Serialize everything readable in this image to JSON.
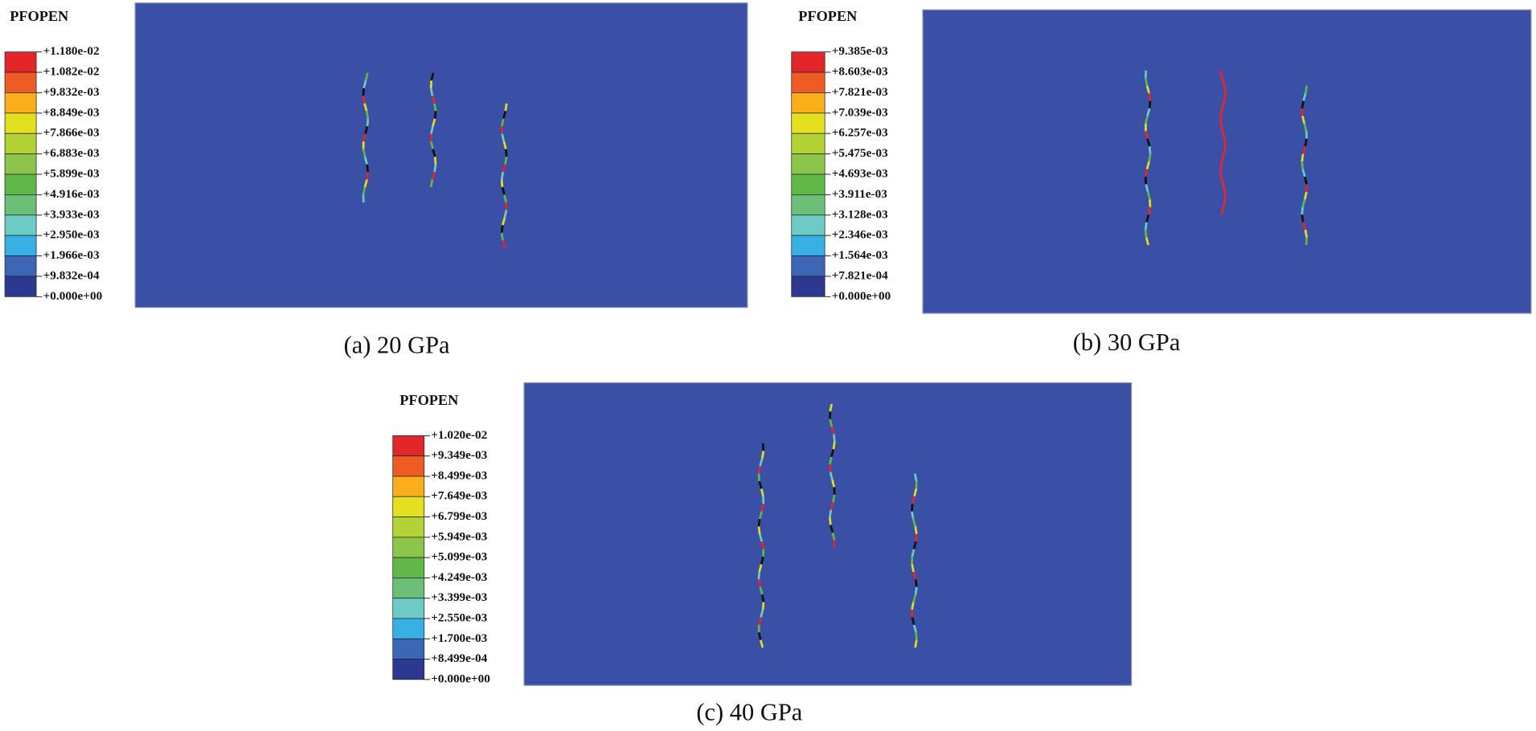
{
  "band_colors": [
    "#e3262a",
    "#ee5b24",
    "#f9ae1a",
    "#e3e01f",
    "#b2d235",
    "#8cc54a",
    "#5fb847",
    "#6bbf78",
    "#6dcbc6",
    "#38b0e3",
    "#3d66b5",
    "#2b3990"
  ],
  "plot_color": "#3a4fa6",
  "panels": [
    {
      "legend_title": "PFOPEN",
      "caption": "(a) 20 GPa",
      "legend_labels": [
        "+1.180e-02",
        "+1.082e-02",
        "+9.832e-03",
        "+8.849e-03",
        "+7.866e-03",
        "+6.883e-03",
        "+5.899e-03",
        "+4.916e-03",
        "+3.933e-03",
        "+2.950e-03",
        "+1.966e-03",
        "+9.832e-04",
        "+0.000e+00"
      ]
    },
    {
      "legend_title": "PFOPEN",
      "caption": "(b) 30 GPa",
      "legend_labels": [
        "+9.385e-03",
        "+8.603e-03",
        "+7.821e-03",
        "+7.039e-03",
        "+6.257e-03",
        "+5.475e-03",
        "+4.693e-03",
        "+3.911e-03",
        "+3.128e-03",
        "+2.346e-03",
        "+1.564e-03",
        "+7.821e-04",
        "+0.000e+00"
      ]
    },
    {
      "legend_title": "PFOPEN",
      "caption": "(c) 40 GPa",
      "legend_labels": [
        "+1.020e-02",
        "+9.349e-03",
        "+8.499e-03",
        "+7.649e-03",
        "+6.799e-03",
        "+5.949e-03",
        "+5.099e-03",
        "+4.249e-03",
        "+3.399e-03",
        "+2.550e-03",
        "+1.700e-03",
        "+8.499e-04",
        "+0.000e+00"
      ]
    }
  ]
}
